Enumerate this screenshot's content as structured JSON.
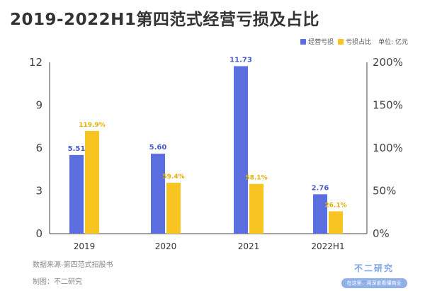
{
  "header": {
    "title": "2019-2022H1第四范式经营亏损及占比"
  },
  "legend": {
    "items": [
      {
        "label": "经营亏损",
        "color": "#5b6ee0"
      },
      {
        "label": "亏损占比",
        "color": "#f7c421"
      }
    ],
    "unit": "单位: 亿元"
  },
  "footer": {
    "source": "数据来源-第四范式招股书",
    "maker": "制图：不二研究",
    "brand_name": "不二研究",
    "brand_tag": "在这里，用深度看懂商业"
  },
  "chart_data": {
    "type": "bar",
    "title": "2019-2022H1第四范式经营亏损及占比",
    "categories": [
      "2019",
      "2020",
      "2021",
      "2022H1"
    ],
    "series": [
      {
        "name": "经营亏损",
        "axis": "left",
        "color": "#5b6ee0",
        "values": [
          5.51,
          5.6,
          11.73,
          2.76
        ],
        "labels": [
          "5.51",
          "5.60",
          "11.73",
          "2.76"
        ]
      },
      {
        "name": "亏损占比",
        "axis": "right",
        "color": "#f7c421",
        "values": [
          119.9,
          59.4,
          58.1,
          26.1
        ],
        "labels": [
          "119.9%",
          "59.4%",
          "58.1%",
          "26.1%"
        ]
      }
    ],
    "y_left": {
      "ylim": [
        0,
        12
      ],
      "ticks": [
        "0",
        "3",
        "6",
        "9",
        "12"
      ],
      "tick_values": [
        0,
        3,
        6,
        9,
        12
      ]
    },
    "y_right": {
      "ylim": [
        0,
        200
      ],
      "ticks": [
        "0%",
        "50%",
        "100%",
        "150%",
        "200%"
      ],
      "tick_values": [
        0,
        50,
        100,
        150,
        200
      ]
    },
    "grid": false,
    "legend_position": "top-right"
  }
}
